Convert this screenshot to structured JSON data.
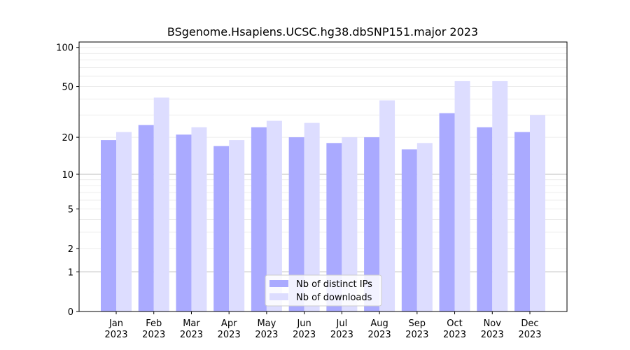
{
  "chart_data": {
    "type": "bar",
    "title": "BSgenome.Hsapiens.UCSC.hg38.dbSNP151.major 2023",
    "xlabel": "",
    "ylabel": "",
    "scale": "log(1+y)",
    "ylim": [
      0,
      110
    ],
    "yticks": [
      0,
      1,
      2,
      5,
      10,
      20,
      50,
      100
    ],
    "categories": [
      {
        "month": "Jan",
        "year": "2023"
      },
      {
        "month": "Feb",
        "year": "2023"
      },
      {
        "month": "Mar",
        "year": "2023"
      },
      {
        "month": "Apr",
        "year": "2023"
      },
      {
        "month": "May",
        "year": "2023"
      },
      {
        "month": "Jun",
        "year": "2023"
      },
      {
        "month": "Jul",
        "year": "2023"
      },
      {
        "month": "Aug",
        "year": "2023"
      },
      {
        "month": "Sep",
        "year": "2023"
      },
      {
        "month": "Oct",
        "year": "2023"
      },
      {
        "month": "Nov",
        "year": "2023"
      },
      {
        "month": "Dec",
        "year": "2023"
      }
    ],
    "series": [
      {
        "name": "Nb of distinct IPs",
        "color": "#aaaaff",
        "values": [
          19,
          25,
          21,
          17,
          24,
          20,
          18,
          20,
          16,
          31,
          24,
          22
        ]
      },
      {
        "name": "Nb of downloads",
        "color": "#ddddff",
        "values": [
          22,
          41,
          24,
          19,
          27,
          26,
          20,
          39,
          18,
          55,
          55,
          30
        ]
      }
    ],
    "legend": {
      "position": "bottom-center"
    },
    "grid": true
  }
}
